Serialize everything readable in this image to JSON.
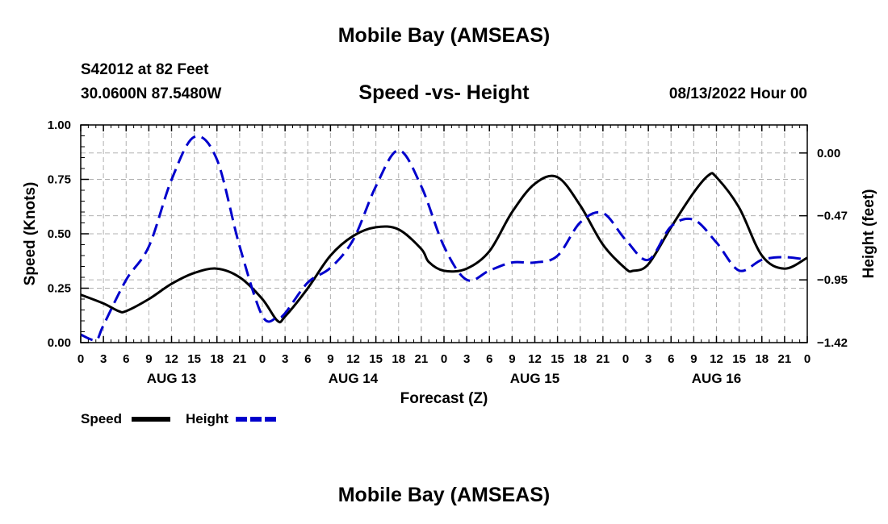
{
  "header": {
    "title": "Mobile Bay (AMSEAS)",
    "station": "S42012 at 82 Feet",
    "coords": "30.0600N  87.5480W",
    "subtitle": "Speed -vs- Height",
    "datetime": "08/13/2022 Hour 00"
  },
  "footer": {
    "title": "Mobile Bay (AMSEAS)"
  },
  "chart_data": {
    "type": "line",
    "title": "Speed -vs- Height",
    "xlabel": "Forecast (Z)",
    "ylabel": "Speed (Knots)",
    "y2label": "Height (feet)",
    "xlim": [
      0,
      96
    ],
    "ylim": [
      0,
      1.0
    ],
    "y2lim": [
      -1.42,
      0.21
    ],
    "grid": true,
    "legend_position": "bottom-left",
    "x_ticks": [
      0,
      3,
      6,
      9,
      12,
      15,
      18,
      21,
      24,
      27,
      30,
      33,
      36,
      39,
      42,
      45,
      48,
      51,
      54,
      57,
      60,
      63,
      66,
      69,
      72,
      75,
      78,
      81,
      84,
      87,
      90,
      93,
      96
    ],
    "x_tick_labels": [
      "0",
      "3",
      "6",
      "9",
      "12",
      "15",
      "18",
      "21",
      "0",
      "3",
      "6",
      "9",
      "12",
      "15",
      "18",
      "21",
      "0",
      "3",
      "6",
      "9",
      "12",
      "15",
      "18",
      "21",
      "0",
      "3",
      "6",
      "9",
      "12",
      "15",
      "18",
      "21",
      "0"
    ],
    "day_labels": [
      {
        "x": 12,
        "label": "AUG 13"
      },
      {
        "x": 36,
        "label": "AUG 14"
      },
      {
        "x": 60,
        "label": "AUG 15"
      },
      {
        "x": 84,
        "label": "AUG 16"
      }
    ],
    "y_ticks": [
      0,
      0.25,
      0.5,
      0.75,
      1.0
    ],
    "y_tick_labels": [
      "0.00",
      "0.25",
      "0.50",
      "0.75",
      "1.00"
    ],
    "y2_ticks": [
      0.0,
      -0.47,
      -0.95,
      -1.42
    ],
    "y2_tick_labels": [
      "0.00",
      "−0.47",
      "−0.95",
      "−1.42"
    ],
    "series": [
      {
        "name": "Speed",
        "axis": "left",
        "color": "#000000",
        "dash": "solid",
        "x": [
          0,
          3,
          5,
          6,
          9,
          12,
          15,
          18,
          21,
          24,
          26,
          27,
          30,
          33,
          36,
          39,
          42,
          45,
          46,
          48,
          51,
          54,
          57,
          60,
          63,
          66,
          69,
          72,
          73,
          75,
          78,
          81,
          83,
          84,
          87,
          90,
          93,
          96
        ],
        "values": [
          0.22,
          0.18,
          0.145,
          0.145,
          0.2,
          0.27,
          0.32,
          0.34,
          0.3,
          0.2,
          0.1,
          0.12,
          0.25,
          0.4,
          0.49,
          0.53,
          0.52,
          0.43,
          0.37,
          0.33,
          0.34,
          0.42,
          0.6,
          0.73,
          0.76,
          0.63,
          0.45,
          0.34,
          0.33,
          0.36,
          0.53,
          0.69,
          0.77,
          0.76,
          0.62,
          0.4,
          0.34,
          0.39
        ]
      },
      {
        "name": "Height",
        "axis": "right",
        "color": "#0000cc",
        "dash": "dashed",
        "x": [
          0,
          2,
          3,
          6,
          9,
          12,
          15,
          18,
          21,
          24,
          26,
          27,
          30,
          33,
          36,
          39,
          42,
          45,
          48,
          51,
          54,
          57,
          60,
          63,
          66,
          69,
          72,
          75,
          78,
          81,
          84,
          87,
          90,
          93,
          96
        ],
        "values": [
          -1.36,
          -1.4,
          -1.29,
          -0.95,
          -0.7,
          -0.2,
          0.12,
          -0.05,
          -0.7,
          -1.22,
          -1.23,
          -1.2,
          -0.97,
          -0.86,
          -0.65,
          -0.25,
          0.02,
          -0.25,
          -0.7,
          -0.95,
          -0.88,
          -0.82,
          -0.82,
          -0.77,
          -0.52,
          -0.45,
          -0.65,
          -0.8,
          -0.55,
          -0.5,
          -0.67,
          -0.88,
          -0.8,
          -0.78,
          -0.8
        ]
      }
    ]
  }
}
